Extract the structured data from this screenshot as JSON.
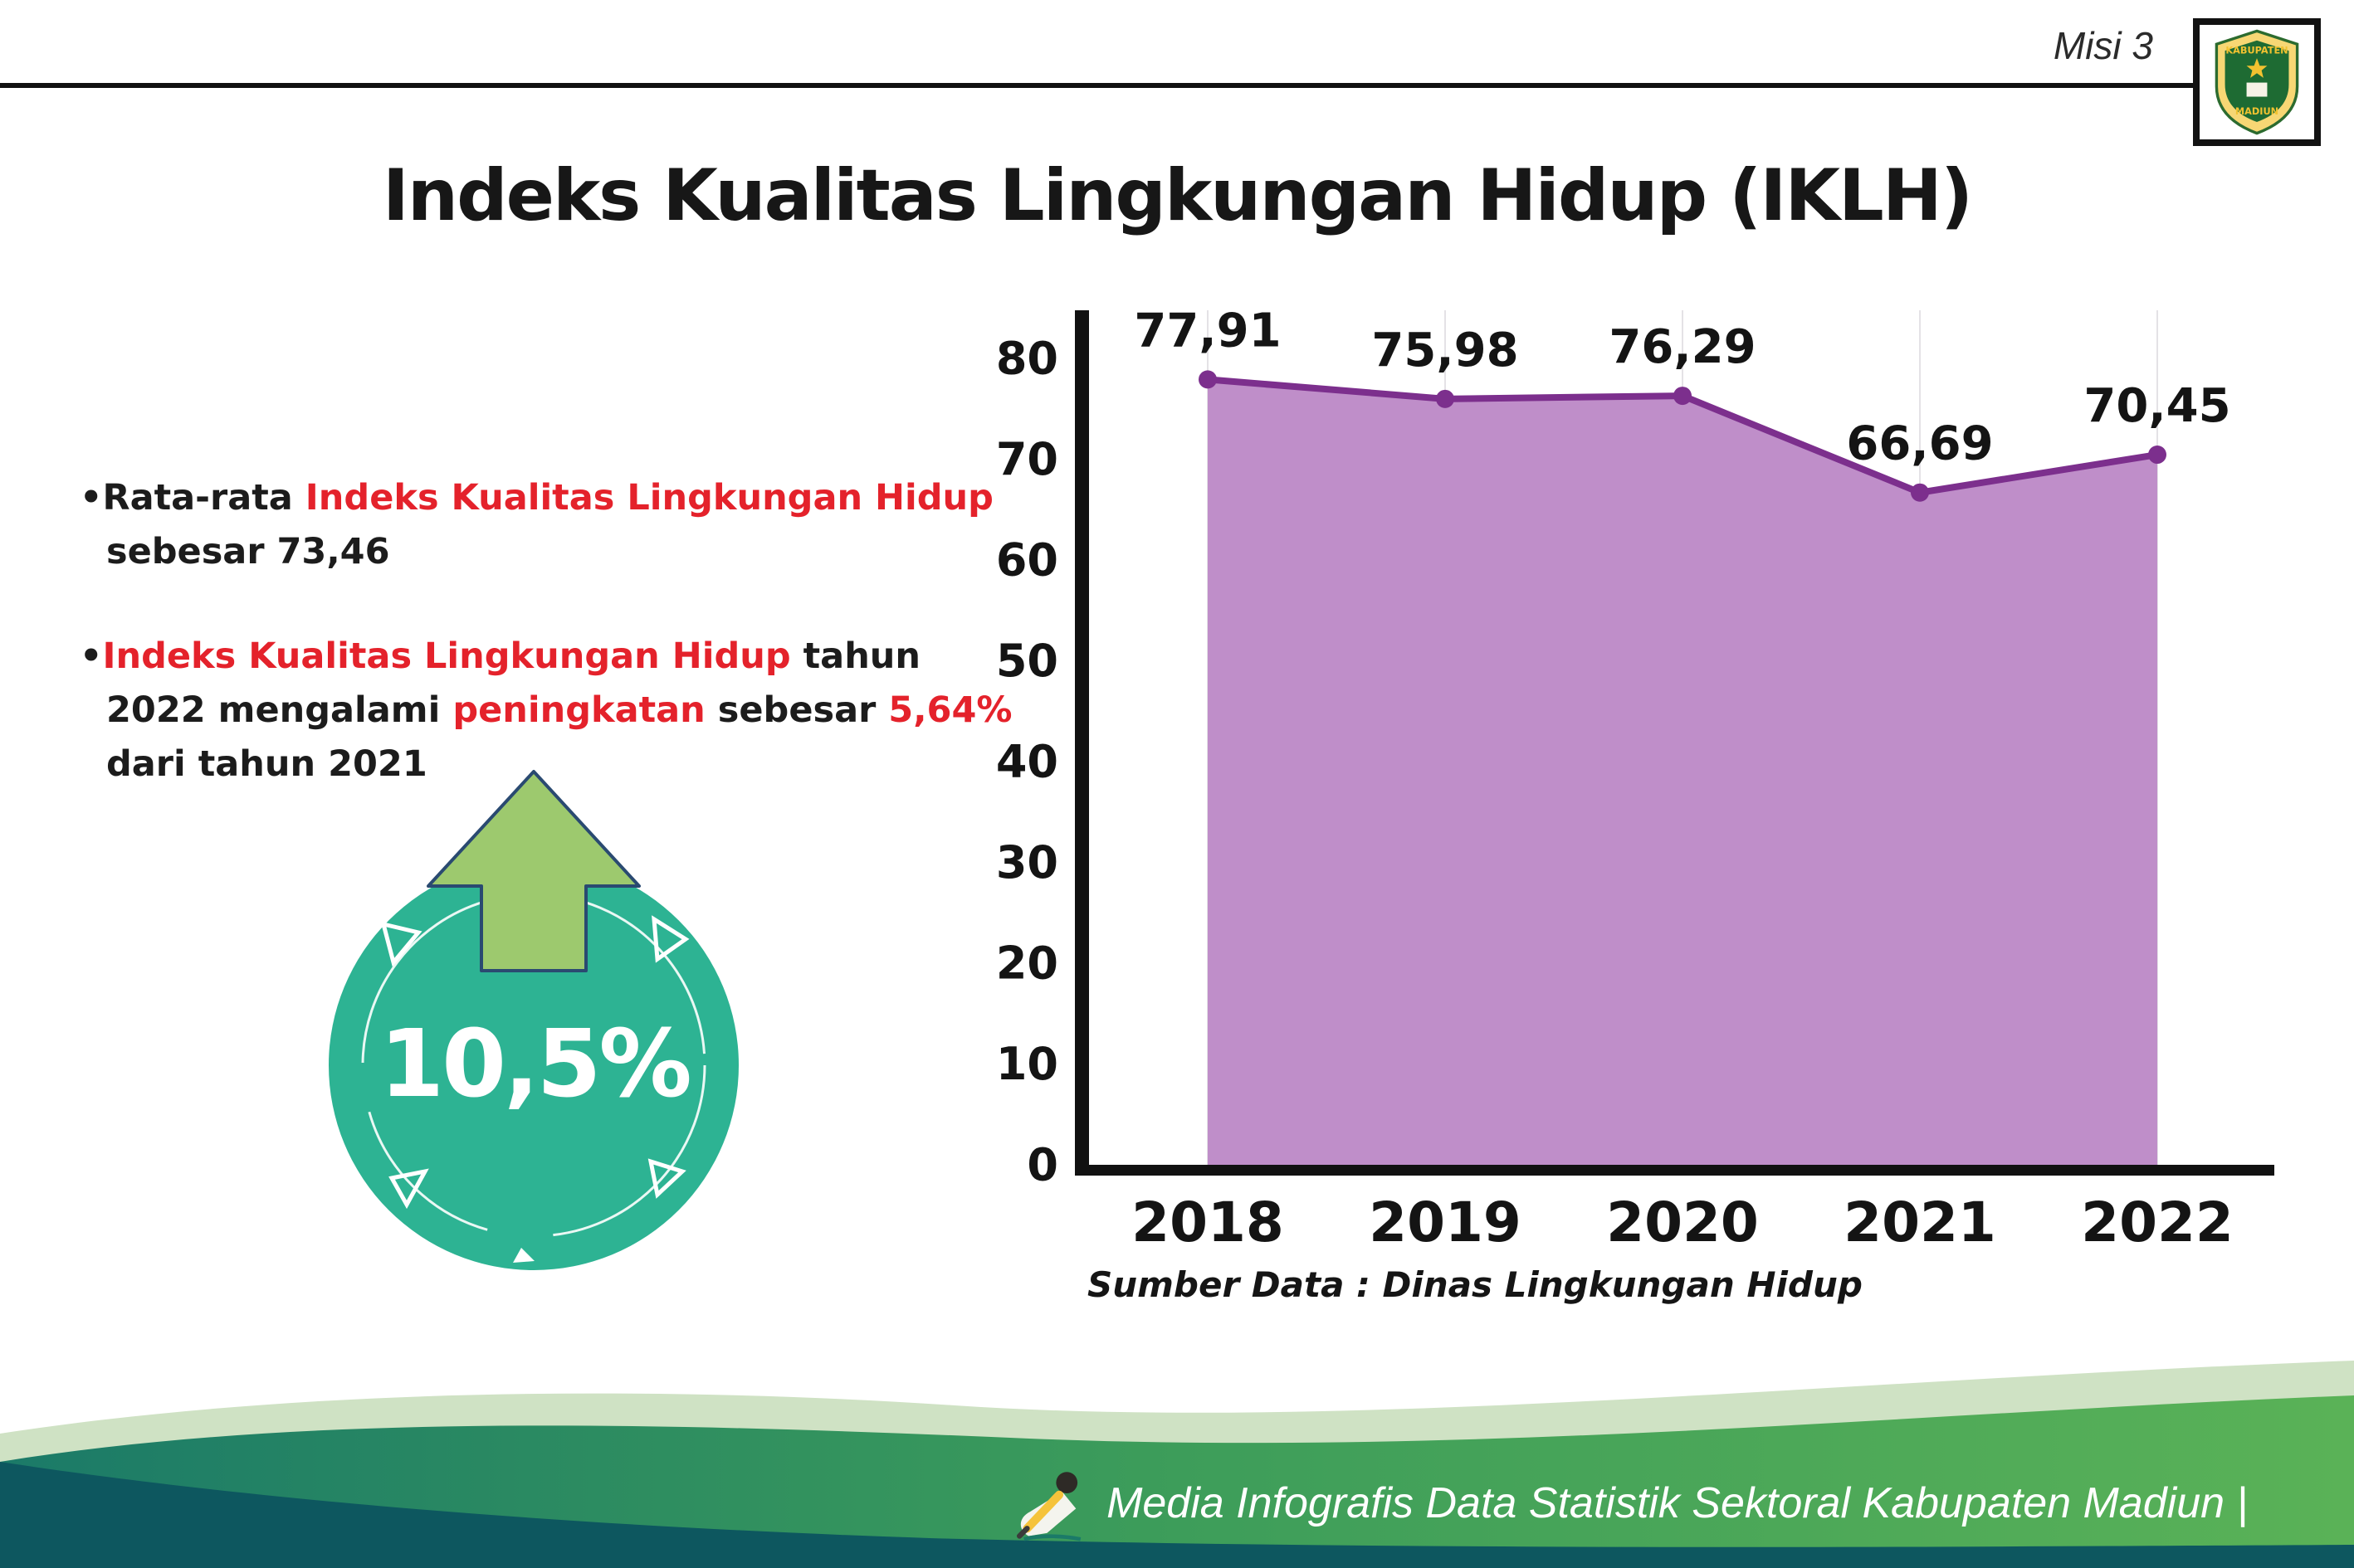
{
  "page": {
    "misi_label": "Misi 3",
    "title": "Indeks Kualitas Lingkungan Hidup (IKLH)"
  },
  "logo": {
    "name": "Kabupaten Madiun",
    "text_top": "KABUPATEN",
    "text_bottom": "MADIUN"
  },
  "bullets": {
    "marker": "•",
    "b1": {
      "pre": "Rata-rata ",
      "red": "Indeks Kualitas Lingkungan Hidup",
      "post": " sebesar 73,46"
    },
    "b2": {
      "red1": "Indeks Kualitas Lingkungan Hidup",
      "mid1": " tahun 2022 mengalami ",
      "red2": "peningkatan",
      "mid2": " sebesar ",
      "red3": "5,64%",
      "post": " dari tahun 2021"
    }
  },
  "badge": {
    "value": "10,5%"
  },
  "chart_data": {
    "type": "area",
    "title": "Indeks Kualitas Lingkungan Hidup (IKLH)",
    "categories": [
      "2018",
      "2019",
      "2020",
      "2021",
      "2022"
    ],
    "values": [
      77.91,
      75.98,
      76.29,
      66.69,
      70.45
    ],
    "point_labels": [
      "77,91",
      "75,98",
      "76,29",
      "66,69",
      "70,45"
    ],
    "ylim": [
      0,
      80
    ],
    "yticks": [
      0,
      10,
      20,
      30,
      40,
      50,
      60,
      70,
      80
    ],
    "legend": "none",
    "grid": "faint-vertical",
    "fill_color": "#bf8ec9",
    "line_color": "#7c2f8d",
    "source": "Sumber Data : Dinas Lingkungan Hidup"
  },
  "footer": {
    "caption": "Media Infografis Data Statistik Sektoral Kabupaten Madiun |"
  }
}
